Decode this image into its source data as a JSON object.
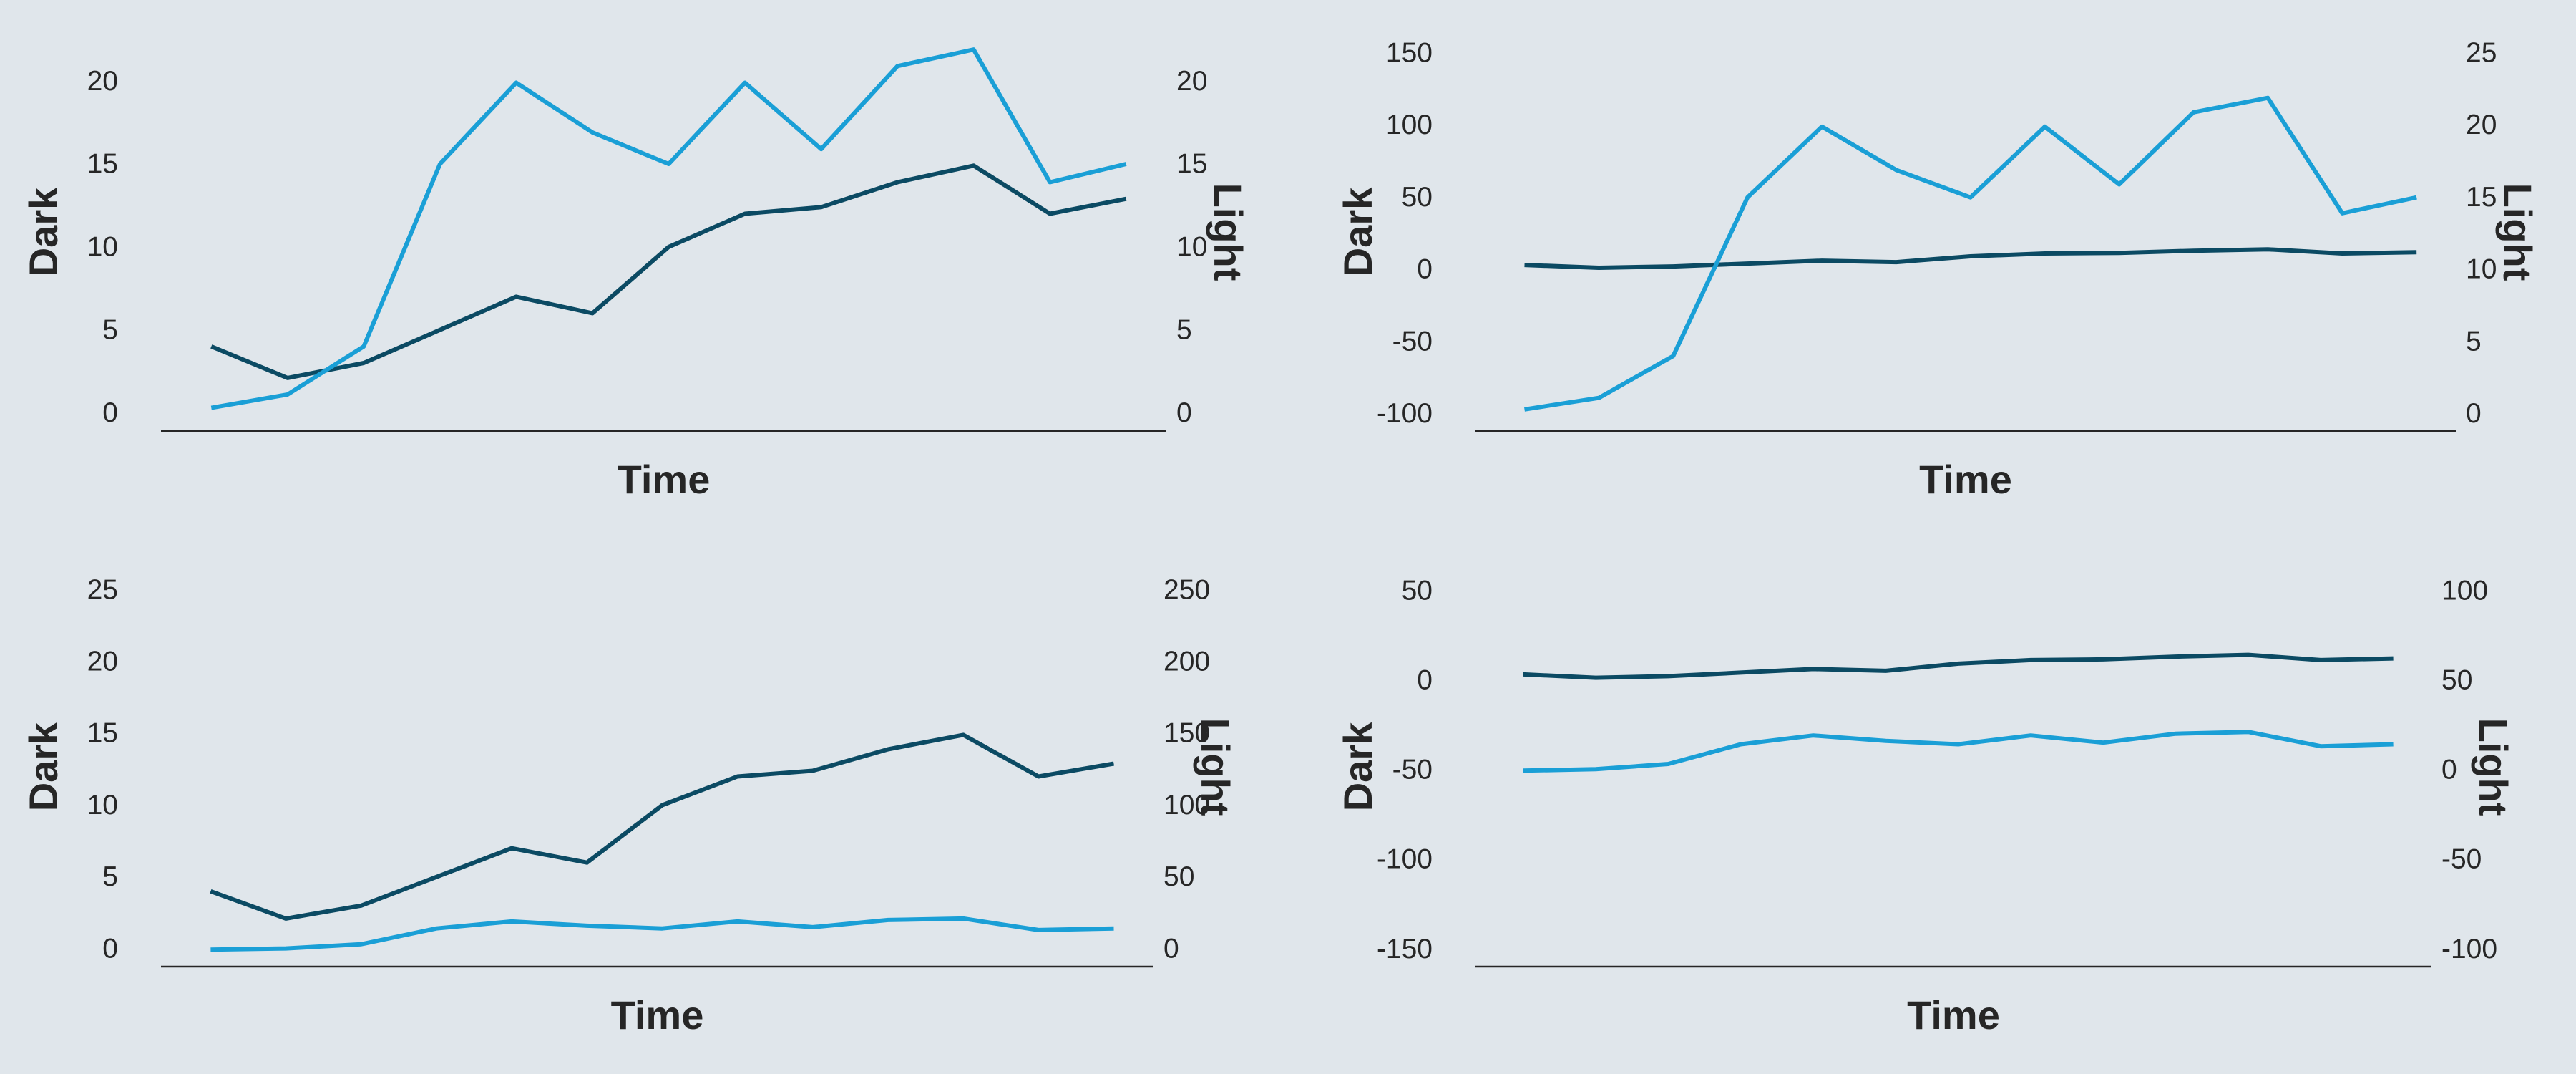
{
  "chart_data": [
    {
      "type": "line",
      "xlabel": "Time",
      "ylabel": "Dark",
      "y2label": "Light",
      "ylim": [
        -1,
        23
      ],
      "yticks": [
        0,
        5,
        10,
        15,
        20
      ],
      "y2lim": [
        -1,
        23
      ],
      "y2ticks": [
        0,
        5,
        10,
        15,
        20
      ],
      "series": [
        {
          "name": "Dark",
          "color": "#0b4a63",
          "values": [
            4.1,
            2.2,
            3.1,
            5.1,
            7.1,
            6.1,
            10.1,
            12.1,
            12.5,
            14.0,
            15.0,
            12.1,
            13.0
          ]
        },
        {
          "name": "Light",
          "color": "#1a9fd6",
          "axis": "y2",
          "values": [
            0.4,
            1.2,
            4.1,
            15.1,
            20.0,
            17.0,
            15.1,
            20.0,
            16.0,
            21.0,
            22.0,
            14.0,
            15.1
          ]
        }
      ]
    },
    {
      "type": "line",
      "xlabel": "Time",
      "ylabel": "Dark",
      "y2label": "Light",
      "ylim": [
        -111,
        165
      ],
      "yticks": [
        -100,
        -50,
        0,
        50,
        100,
        150
      ],
      "y2lim": [
        -1.1,
        26.5
      ],
      "y2ticks": [
        0,
        5,
        10,
        15,
        20,
        25
      ],
      "series": [
        {
          "name": "Dark",
          "color": "#0b4a63",
          "values": [
            4.1,
            2.2,
            3.1,
            5.1,
            7.1,
            6.1,
            10.1,
            12.1,
            12.5,
            14.0,
            15.0,
            12.1,
            13.0
          ]
        },
        {
          "name": "Light",
          "color": "#1a9fd6",
          "axis": "y2",
          "values": [
            0.4,
            1.2,
            4.1,
            15.1,
            20.0,
            17.0,
            15.1,
            20.0,
            16.0,
            21.0,
            22.0,
            14.0,
            15.1
          ]
        }
      ]
    },
    {
      "type": "line",
      "xlabel": "Time",
      "ylabel": "Dark",
      "y2label": "Light",
      "ylim": [
        -1.15,
        26.7
      ],
      "yticks": [
        0,
        5,
        10,
        15,
        20,
        25
      ],
      "y2lim": [
        -11.5,
        267
      ],
      "y2ticks": [
        0,
        50,
        100,
        150,
        200,
        250
      ],
      "series": [
        {
          "name": "Dark",
          "color": "#0b4a63",
          "values": [
            4.1,
            2.2,
            3.1,
            5.1,
            7.1,
            6.1,
            10.1,
            12.1,
            12.5,
            14.0,
            15.0,
            12.1,
            13.0
          ]
        },
        {
          "name": "Light",
          "color": "#1a9fd6",
          "axis": "y2",
          "values": [
            0.4,
            1.2,
            4.1,
            15.1,
            20.0,
            17.0,
            15.1,
            20.0,
            16.0,
            21.0,
            22.0,
            14.0,
            15.1
          ]
        }
      ]
    },
    {
      "type": "line",
      "xlabel": "Time",
      "ylabel": "Dark",
      "y2label": "Light",
      "ylim": [
        -159,
        64
      ],
      "yticks": [
        -150,
        -100,
        -50,
        0,
        50
      ],
      "y2lim": [
        -109,
        114
      ],
      "y2ticks": [
        -100,
        -50,
        0,
        50,
        100
      ],
      "series": [
        {
          "name": "Dark",
          "color": "#0b4a63",
          "values": [
            4.1,
            2.2,
            3.1,
            5.1,
            7.1,
            6.1,
            10.1,
            12.1,
            12.5,
            14.0,
            15.0,
            12.1,
            13.0
          ]
        },
        {
          "name": "Light",
          "color": "#1a9fd6",
          "axis": "y2",
          "values": [
            0.4,
            1.2,
            4.1,
            15.1,
            20.0,
            17.0,
            15.1,
            20.0,
            16.0,
            21.0,
            22.0,
            14.0,
            15.1
          ]
        }
      ]
    }
  ]
}
